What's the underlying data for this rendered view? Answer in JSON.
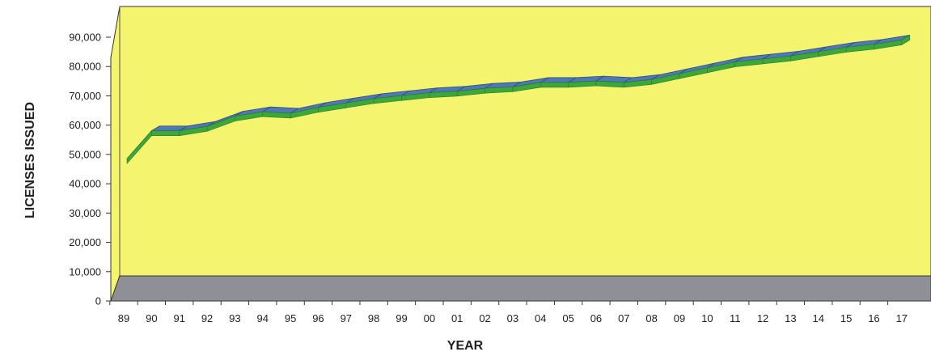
{
  "chart_data": {
    "type": "line",
    "title": "",
    "xlabel": "YEAR",
    "ylabel": "LICENSES ISSUED",
    "categories": [
      "89",
      "90",
      "91",
      "92",
      "93",
      "94",
      "95",
      "96",
      "97",
      "98",
      "99",
      "00",
      "01",
      "02",
      "03",
      "04",
      "05",
      "06",
      "07",
      "08",
      "09",
      "10",
      "11",
      "12",
      "13",
      "14",
      "15",
      "16",
      "17"
    ],
    "yticks": [
      "0",
      "10,000",
      "20,000",
      "30,000",
      "40,000",
      "50,000",
      "60,000",
      "70,000",
      "80,000",
      "90,000"
    ],
    "ylim": [
      0,
      90000
    ],
    "style": "3d-ribbon",
    "grid": false,
    "series": [
      {
        "values": [
          48000,
          57500,
          57500,
          59000,
          62500,
          64000,
          63500,
          65500,
          67000,
          68500,
          69500,
          70500,
          71000,
          72000,
          72500,
          74000,
          74000,
          74500,
          74000,
          75000,
          77000,
          79000,
          81000,
          82000,
          83000,
          84500,
          86000,
          87000,
          88500
        ]
      }
    ],
    "colors": {
      "wall": "#f4f46e",
      "floor": "#8f8f98",
      "ribbon_top": "#4f78b4",
      "ribbon_edge": "#3da83a"
    }
  }
}
